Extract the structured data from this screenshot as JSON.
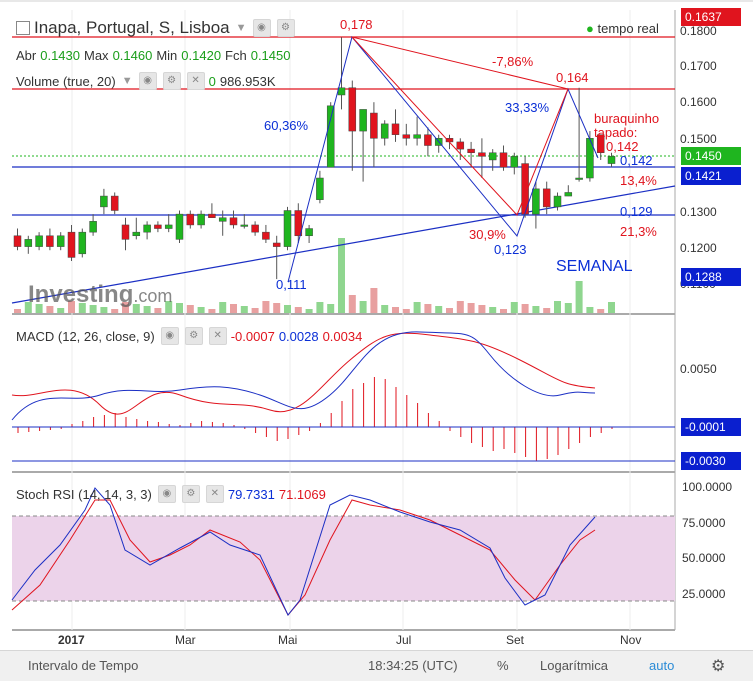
{
  "header": {
    "symbol": "Inapa, Portugal, S, Lisboa",
    "realtime": "tempo real",
    "current_price_badge": "0.1637"
  },
  "ohlc": {
    "open_label": "Abr",
    "open": "0.1430",
    "max_label": "Max",
    "max": "0.1460",
    "min_label": "Min",
    "min": "0.1420",
    "close_label": "Fch",
    "close": "0.1450"
  },
  "volume": {
    "label": "Volume (true, 20)",
    "v1": "0",
    "v2": "986.953K"
  },
  "macd": {
    "label": "MACD (12, 26, close, 9)",
    "v1": "-0.0007",
    "v2": "0.0028",
    "v3": "0.0034"
  },
  "stoch": {
    "label": "Stoch RSI (14, 14, 3, 3)",
    "v1": "79.7331",
    "v2": "71.1069"
  },
  "price_axis": [
    "0.1800",
    "0.1700",
    "0.1600",
    "0.1500",
    "0.1300",
    "0.1200",
    "0.1100"
  ],
  "price_badges": {
    "last": "0.1450",
    "line1": "0.1421",
    "line2": "0.1288"
  },
  "macd_axis": [
    "0.0050"
  ],
  "macd_badges": {
    "b1": "-0.0001",
    "b2": "-0.0030"
  },
  "stoch_axis": [
    "100.0000",
    "75.0000",
    "50.0000",
    "25.0000"
  ],
  "time_axis": [
    "2017",
    "Mar",
    "Mai",
    "Jul",
    "Set",
    "Nov"
  ],
  "annotations": {
    "a178": "0,178",
    "a111": "0,111",
    "p6036": "60,36%",
    "m786": "-7,86%",
    "a164": "0,164",
    "p3333": "33,33%",
    "note1": "buraquinho",
    "note2": "tapado:",
    "a142r": "0,142",
    "a142b": "0,142",
    "p134": "13,4%",
    "a129": "0,129",
    "p213": "21,3%",
    "p309": "30,9%",
    "a123": "0,123",
    "semanal": "SEMANAL"
  },
  "watermark": {
    "brand": "Investing",
    "suffix": ".com"
  },
  "toolbar": {
    "interval": "Intervalo de Tempo",
    "time": "18:34:25 (UTC)",
    "percent": "%",
    "log": "Logarítmica",
    "auto": "auto"
  },
  "colors": {
    "up": "#1fb51f",
    "down": "#e0141e",
    "blue_line": "#1b2fc4",
    "red_line": "#e0141e",
    "stoch_fill": "#e8cfe6",
    "badge_blue": "#0a1fcf"
  },
  "chart_data": {
    "type": "candlestick",
    "candles": [
      {
        "o": 0.123,
        "h": 0.125,
        "l": 0.119,
        "c": 0.12
      },
      {
        "o": 0.12,
        "h": 0.123,
        "l": 0.118,
        "c": 0.122
      },
      {
        "o": 0.12,
        "h": 0.124,
        "l": 0.119,
        "c": 0.123
      },
      {
        "o": 0.123,
        "h": 0.125,
        "l": 0.119,
        "c": 0.12
      },
      {
        "o": 0.12,
        "h": 0.124,
        "l": 0.119,
        "c": 0.123
      },
      {
        "o": 0.124,
        "h": 0.126,
        "l": 0.116,
        "c": 0.117
      },
      {
        "o": 0.118,
        "h": 0.125,
        "l": 0.117,
        "c": 0.124
      },
      {
        "o": 0.124,
        "h": 0.129,
        "l": 0.123,
        "c": 0.127
      },
      {
        "o": 0.131,
        "h": 0.136,
        "l": 0.129,
        "c": 0.134
      },
      {
        "o": 0.134,
        "h": 0.135,
        "l": 0.129,
        "c": 0.13
      },
      {
        "o": 0.126,
        "h": 0.128,
        "l": 0.119,
        "c": 0.122
      },
      {
        "o": 0.123,
        "h": 0.128,
        "l": 0.122,
        "c": 0.124
      },
      {
        "o": 0.124,
        "h": 0.127,
        "l": 0.122,
        "c": 0.126
      },
      {
        "o": 0.126,
        "h": 0.127,
        "l": 0.124,
        "c": 0.125
      },
      {
        "o": 0.125,
        "h": 0.129,
        "l": 0.124,
        "c": 0.126
      },
      {
        "o": 0.122,
        "h": 0.13,
        "l": 0.121,
        "c": 0.129
      },
      {
        "o": 0.129,
        "h": 0.13,
        "l": 0.125,
        "c": 0.126
      },
      {
        "o": 0.126,
        "h": 0.13,
        "l": 0.125,
        "c": 0.129
      },
      {
        "o": 0.129,
        "h": 0.132,
        "l": 0.128,
        "c": 0.128
      },
      {
        "o": 0.127,
        "h": 0.13,
        "l": 0.123,
        "c": 0.128
      },
      {
        "o": 0.128,
        "h": 0.13,
        "l": 0.125,
        "c": 0.126
      },
      {
        "o": 0.126,
        "h": 0.129,
        "l": 0.125,
        "c": 0.126
      },
      {
        "o": 0.126,
        "h": 0.127,
        "l": 0.123,
        "c": 0.124
      },
      {
        "o": 0.124,
        "h": 0.126,
        "l": 0.121,
        "c": 0.122
      },
      {
        "o": 0.121,
        "h": 0.123,
        "l": 0.111,
        "c": 0.12
      },
      {
        "o": 0.12,
        "h": 0.131,
        "l": 0.119,
        "c": 0.13
      },
      {
        "o": 0.13,
        "h": 0.132,
        "l": 0.121,
        "c": 0.123
      },
      {
        "o": 0.123,
        "h": 0.126,
        "l": 0.121,
        "c": 0.125
      },
      {
        "o": 0.133,
        "h": 0.141,
        "l": 0.132,
        "c": 0.139
      },
      {
        "o": 0.142,
        "h": 0.16,
        "l": 0.142,
        "c": 0.159
      },
      {
        "o": 0.162,
        "h": 0.178,
        "l": 0.158,
        "c": 0.164
      },
      {
        "o": 0.164,
        "h": 0.166,
        "l": 0.141,
        "c": 0.152
      },
      {
        "o": 0.152,
        "h": 0.158,
        "l": 0.138,
        "c": 0.158
      },
      {
        "o": 0.157,
        "h": 0.16,
        "l": 0.142,
        "c": 0.15
      },
      {
        "o": 0.15,
        "h": 0.155,
        "l": 0.148,
        "c": 0.154
      },
      {
        "o": 0.154,
        "h": 0.158,
        "l": 0.149,
        "c": 0.151
      },
      {
        "o": 0.151,
        "h": 0.154,
        "l": 0.148,
        "c": 0.15
      },
      {
        "o": 0.15,
        "h": 0.156,
        "l": 0.148,
        "c": 0.151
      },
      {
        "o": 0.151,
        "h": 0.153,
        "l": 0.145,
        "c": 0.148
      },
      {
        "o": 0.148,
        "h": 0.151,
        "l": 0.146,
        "c": 0.15
      },
      {
        "o": 0.15,
        "h": 0.151,
        "l": 0.147,
        "c": 0.149
      },
      {
        "o": 0.149,
        "h": 0.15,
        "l": 0.144,
        "c": 0.147
      },
      {
        "o": 0.147,
        "h": 0.149,
        "l": 0.142,
        "c": 0.146
      },
      {
        "o": 0.146,
        "h": 0.15,
        "l": 0.139,
        "c": 0.145
      },
      {
        "o": 0.144,
        "h": 0.147,
        "l": 0.141,
        "c": 0.146
      },
      {
        "o": 0.146,
        "h": 0.148,
        "l": 0.141,
        "c": 0.142
      },
      {
        "o": 0.142,
        "h": 0.146,
        "l": 0.14,
        "c": 0.145
      },
      {
        "o": 0.143,
        "h": 0.145,
        "l": 0.128,
        "c": 0.129
      },
      {
        "o": 0.129,
        "h": 0.138,
        "l": 0.125,
        "c": 0.136
      },
      {
        "o": 0.136,
        "h": 0.138,
        "l": 0.129,
        "c": 0.131
      },
      {
        "o": 0.131,
        "h": 0.135,
        "l": 0.13,
        "c": 0.134
      },
      {
        "o": 0.134,
        "h": 0.137,
        "l": 0.134,
        "c": 0.135
      },
      {
        "o": 0.139,
        "h": 0.164,
        "l": 0.138,
        "c": 0.139
      },
      {
        "o": 0.139,
        "h": 0.152,
        "l": 0.138,
        "c": 0.15
      },
      {
        "o": 0.151,
        "h": 0.151,
        "l": 0.144,
        "c": 0.146
      },
      {
        "o": 0.143,
        "h": 0.146,
        "l": 0.142,
        "c": 0.145
      }
    ],
    "x_labels": [
      "2017",
      "Mar",
      "Mai",
      "Jul",
      "Set",
      "Nov"
    ]
  }
}
